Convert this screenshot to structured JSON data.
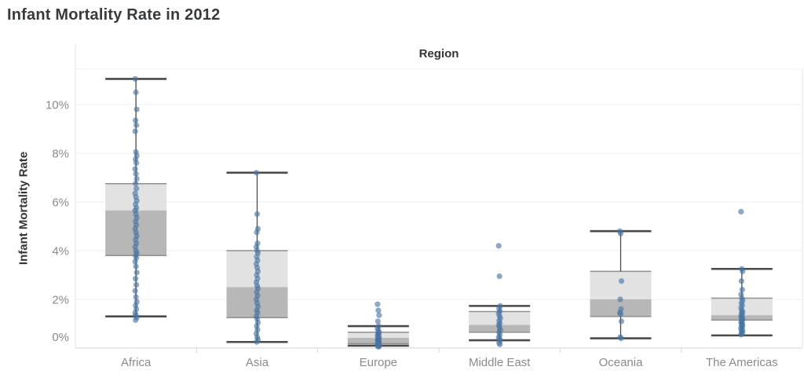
{
  "chart_data": {
    "type": "boxplot",
    "title": "Infant Mortality Rate in 2012",
    "column_header": "Region",
    "ylabel": "Infant Mortality Rate",
    "value_format": "percent",
    "grid": true,
    "ylim": [
      -0.45,
      11.45
    ],
    "y_tick_values": [
      0,
      2,
      4,
      6,
      8,
      10
    ],
    "y_tick_labels": [
      "0%",
      "2%",
      "4%",
      "6%",
      "8%",
      "10%"
    ],
    "categories": [
      "Africa",
      "Asia",
      "Europe",
      "Middle East",
      "Oceania",
      "The Americas"
    ],
    "series": [
      {
        "category": "Africa",
        "whisker_low": 1.3,
        "q1": 3.8,
        "median": 5.65,
        "q3": 6.75,
        "whisker_high": 11.05,
        "points": [
          11.05,
          10.5,
          9.8,
          9.35,
          9.15,
          8.9,
          8.05,
          7.9,
          7.75,
          7.6,
          7.35,
          7.15,
          6.95,
          6.75,
          6.55,
          6.35,
          6.2,
          6.05,
          5.9,
          5.75,
          5.65,
          5.5,
          5.35,
          5.2,
          5.05,
          4.9,
          4.75,
          4.6,
          4.45,
          4.3,
          4.15,
          4.0,
          3.9,
          3.8,
          3.7,
          3.55,
          3.35,
          3.1,
          2.85,
          2.6,
          2.35,
          2.1,
          1.9,
          1.75,
          1.6,
          1.45,
          1.35,
          1.25,
          1.15
        ]
      },
      {
        "category": "Asia",
        "whisker_low": 0.25,
        "q1": 1.25,
        "median": 2.5,
        "q3": 4.0,
        "whisker_high": 7.2,
        "points": [
          7.2,
          5.5,
          4.9,
          4.75,
          4.3,
          4.15,
          4.0,
          3.9,
          3.75,
          3.6,
          3.45,
          3.3,
          3.15,
          3.0,
          2.85,
          2.7,
          2.55,
          2.45,
          2.3,
          2.15,
          2.0,
          1.85,
          1.7,
          1.55,
          1.45,
          1.3,
          1.2,
          1.05,
          0.9,
          0.75,
          0.6,
          0.45,
          0.35,
          0.25
        ]
      },
      {
        "category": "Europe",
        "whisker_low": 0.1,
        "q1": 0.18,
        "median": 0.42,
        "q3": 0.65,
        "whisker_high": 0.9,
        "points": [
          1.8,
          1.55,
          1.35,
          1.1,
          0.9,
          0.8,
          0.72,
          0.65,
          0.6,
          0.55,
          0.5,
          0.46,
          0.42,
          0.38,
          0.34,
          0.3,
          0.27,
          0.24,
          0.21,
          0.18,
          0.15,
          0.12,
          0.1,
          0.07,
          0.05
        ]
      },
      {
        "category": "Middle East",
        "whisker_low": 0.32,
        "q1": 0.65,
        "median": 0.95,
        "q3": 1.5,
        "whisker_high": 1.73,
        "points": [
          4.2,
          2.95,
          1.73,
          1.62,
          1.52,
          1.42,
          1.32,
          1.22,
          1.12,
          1.02,
          0.95,
          0.85,
          0.75,
          0.65,
          0.55,
          0.45,
          0.38,
          0.32,
          0.22,
          0.15
        ]
      },
      {
        "category": "Oceania",
        "whisker_low": 0.4,
        "q1": 1.3,
        "median": 2.0,
        "q3": 3.15,
        "whisker_high": 4.8,
        "points": [
          4.8,
          4.7,
          2.75,
          2.0,
          1.6,
          1.45,
          1.4,
          1.1,
          0.45,
          0.4
        ]
      },
      {
        "category": "The Americas",
        "whisker_low": 0.52,
        "q1": 1.15,
        "median": 1.35,
        "q3": 2.05,
        "whisker_high": 3.25,
        "points": [
          5.6,
          3.25,
          3.15,
          2.75,
          2.4,
          2.2,
          2.05,
          1.95,
          1.85,
          1.75,
          1.65,
          1.55,
          1.48,
          1.42,
          1.36,
          1.3,
          1.25,
          1.2,
          1.15,
          1.1,
          1.05,
          1.0,
          0.95,
          0.9,
          0.85,
          0.8,
          0.75,
          0.7,
          0.65,
          0.6,
          0.55
        ]
      }
    ],
    "colors": {
      "point": "#4672a1",
      "box_upper": "#e2e2e2",
      "box_lower": "#b7b7b7",
      "box_edge": "#8f8f8f",
      "whisker": "#4a4a4a",
      "gridline": "#ededed",
      "axis_line": "#d6d6d6",
      "pane_border": "#e6e6e6",
      "tick_label": "#8a8a8a"
    }
  }
}
